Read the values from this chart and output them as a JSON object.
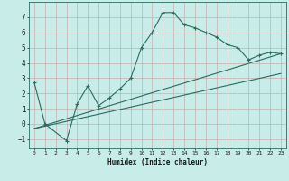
{
  "xlabel": "Humidex (Indice chaleur)",
  "background_color": "#c8ece8",
  "line_color": "#2a6b60",
  "grid_color_v": "#c8a0a0",
  "grid_color_h": "#c8a0a0",
  "xlim": [
    -0.5,
    23.5
  ],
  "ylim": [
    -1.6,
    8.0
  ],
  "xticks": [
    0,
    1,
    2,
    3,
    4,
    5,
    6,
    7,
    8,
    9,
    10,
    11,
    12,
    13,
    14,
    15,
    16,
    17,
    18,
    19,
    20,
    21,
    22,
    23
  ],
  "yticks": [
    -1,
    0,
    1,
    2,
    3,
    4,
    5,
    6,
    7
  ],
  "main_series": {
    "x": [
      0,
      1,
      3,
      4,
      5,
      6,
      7,
      8,
      9,
      10,
      11,
      12,
      13,
      14,
      15,
      16,
      17,
      18,
      19,
      20,
      21,
      22,
      23
    ],
    "y": [
      2.7,
      0.0,
      -1.1,
      1.3,
      2.5,
      1.2,
      1.7,
      2.3,
      3.0,
      5.0,
      6.0,
      7.3,
      7.3,
      6.5,
      6.3,
      6.0,
      5.7,
      5.2,
      5.0,
      4.2,
      4.5,
      4.7,
      4.6
    ]
  },
  "trend1": {
    "x": [
      0,
      23
    ],
    "y": [
      -0.3,
      4.6
    ]
  },
  "trend2": {
    "x": [
      0,
      23
    ],
    "y": [
      -0.3,
      3.3
    ]
  }
}
